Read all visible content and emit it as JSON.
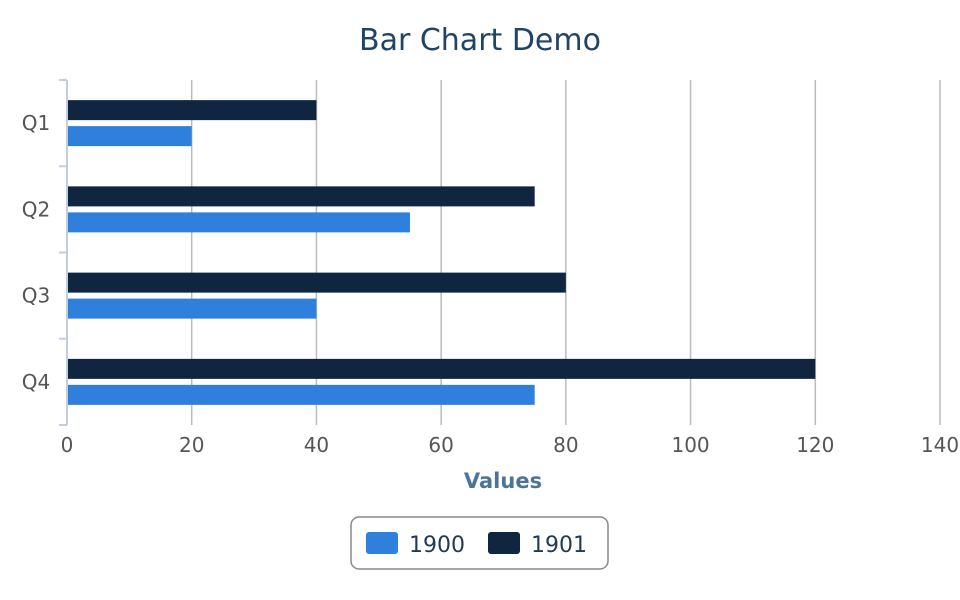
{
  "chart_data": {
    "type": "bar",
    "orientation": "horizontal",
    "title": "Bar Chart Demo",
    "xlabel": "Values",
    "ylabel": "",
    "categories": [
      "Q1",
      "Q2",
      "Q3",
      "Q4"
    ],
    "series": [
      {
        "name": "1900",
        "values": [
          20,
          55,
          40,
          75
        ],
        "color": "#2f80dc"
      },
      {
        "name": "1901",
        "values": [
          40,
          75,
          80,
          120
        ],
        "color": "#0f2540"
      }
    ],
    "xlim": [
      0,
      140
    ],
    "x_ticks": [
      "0",
      "20",
      "40",
      "60",
      "80",
      "100",
      "120",
      "140"
    ],
    "grid": true,
    "legend_position": "bottom-center"
  },
  "colors": {
    "title": "#1f4466",
    "axis_title": "#4d7399",
    "tick_label": "#555555",
    "gridline": "#bbbbbb",
    "axis_line": "#c0cfe0",
    "legend_border": "#888888"
  }
}
